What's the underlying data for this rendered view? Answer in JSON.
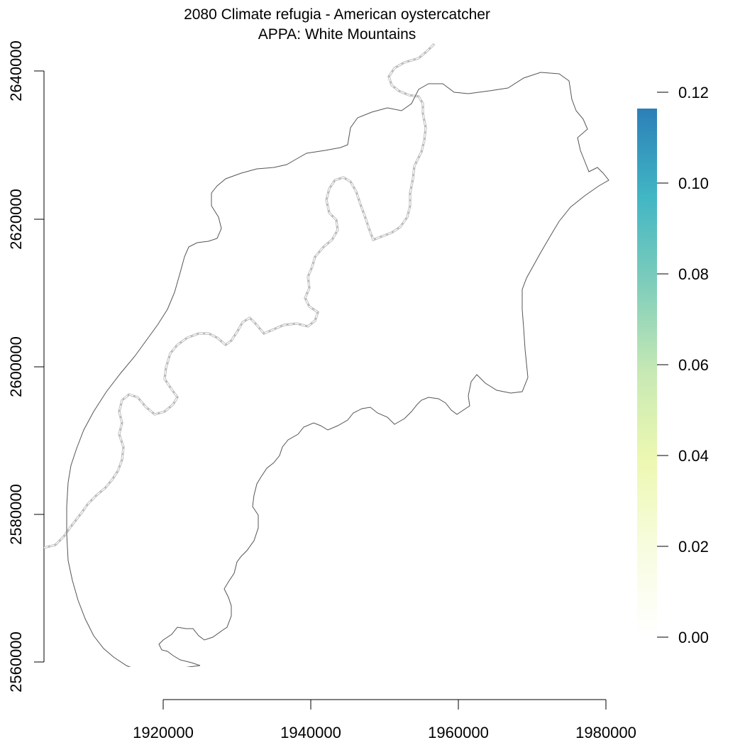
{
  "title": {
    "line1": "2080 Climate refugia - American oystercatcher",
    "line2": "APPA: White Mountains"
  },
  "x_axis": {
    "ticks": [
      "1920000",
      "1940000",
      "1960000",
      "1980000"
    ]
  },
  "y_axis": {
    "ticks": [
      "2560000",
      "2580000",
      "2600000",
      "2620000",
      "2640000"
    ]
  },
  "legend": {
    "ticks": [
      "0.00",
      "0.02",
      "0.04",
      "0.06",
      "0.08",
      "0.10",
      "0.12"
    ],
    "palette": [
      "#ffffff",
      "#f7fcdf",
      "#edf8b1",
      "#c7e9b4",
      "#7fcdbb",
      "#41b6c4",
      "#2c7fb8"
    ]
  }
}
